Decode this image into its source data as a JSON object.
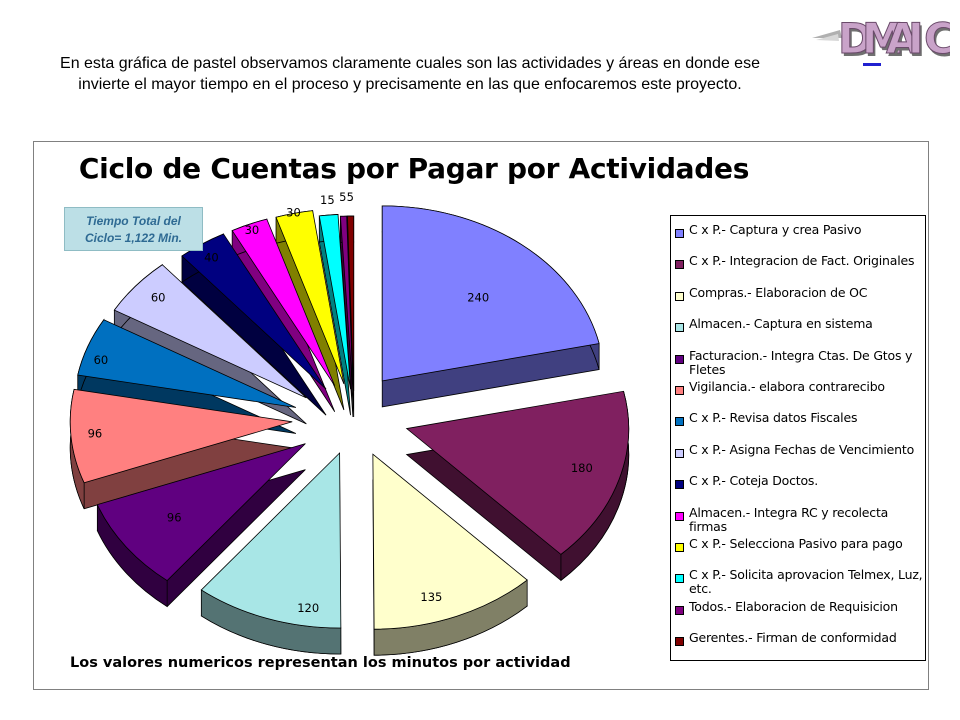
{
  "intro_text": "En esta gráfica de pastel observamos claramente cuales son las actividades y áreas en donde ese invierte el mayor tiempo en el proceso y precisamente en las que enfocaremos este proyecto.",
  "logo": {
    "letters": [
      "D",
      "M",
      "A",
      "I",
      "C"
    ],
    "color": "#c9a3c9"
  },
  "total_box": {
    "line1": "Tiempo Total del",
    "line2": "Ciclo= 1,122 Min."
  },
  "footnote": "Los valores numericos representan los minutos por actividad",
  "chart_data": {
    "type": "pie",
    "title": "Ciclo de Cuentas por Pagar por Actividades",
    "total": 1122,
    "slices": [
      {
        "label": "C x P.- Captura y crea Pasivo",
        "value": 240,
        "color": "#8080ff"
      },
      {
        "label": "C x P.- Integracion de Fact. Originales",
        "value": 180,
        "color": "#802060"
      },
      {
        "label": "Compras.- Elaboracion de OC",
        "value": 135,
        "color": "#ffffcc"
      },
      {
        "label": "Almacen.- Captura en sistema",
        "value": 120,
        "color": "#a8e6e6"
      },
      {
        "label": "Facturacion.- Integra Ctas. De Gtos y Fletes",
        "value": 96,
        "color": "#600080"
      },
      {
        "label": "Vigilancia.- elabora contrarecibo",
        "value": 96,
        "color": "#ff8080"
      },
      {
        "label": "C x P.- Revisa datos Fiscales",
        "value": 60,
        "color": "#0070c0"
      },
      {
        "label": "C x P.- Asigna Fechas de Vencimiento",
        "value": 60,
        "color": "#ccccff"
      },
      {
        "label": "C x P.- Coteja Doctos.",
        "value": 40,
        "color": "#000080"
      },
      {
        "label": "Almacen.- Integra RC y recolecta firmas",
        "value": 30,
        "color": "#ff00ff"
      },
      {
        "label": "C x P.- Selecciona Pasivo para pago",
        "value": 30,
        "color": "#ffff00"
      },
      {
        "label": "C x P.- Solicita aprovacion Telmex, Luz, etc.",
        "value": 15,
        "color": "#00ffff"
      },
      {
        "label": "Todos.- Elaboracion de Requisicion",
        "value": 5,
        "color": "#800080"
      },
      {
        "label": "Gerentes.- Firman de conformidad",
        "value": 5,
        "color": "#800000"
      }
    ]
  }
}
